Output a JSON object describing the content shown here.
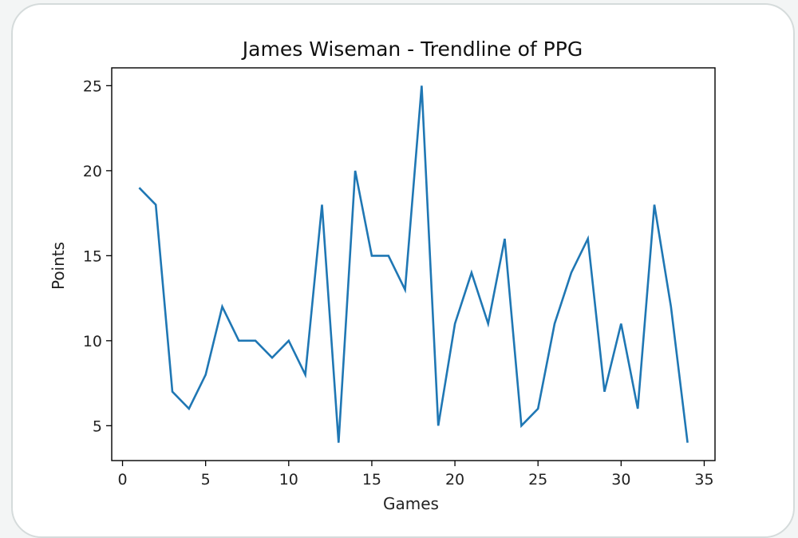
{
  "chart_data": {
    "type": "line",
    "title": "James Wiseman - Trendline of PPG",
    "xlabel": "Games",
    "ylabel": "Points",
    "xlim": [
      -0.65,
      35.65
    ],
    "ylim": [
      2.95,
      26.05
    ],
    "xticks": [
      0,
      5,
      10,
      15,
      20,
      25,
      30,
      35
    ],
    "yticks": [
      5,
      10,
      15,
      20,
      25
    ],
    "series": [
      {
        "color": "#1f77b4",
        "x": [
          1,
          2,
          3,
          4,
          5,
          6,
          7,
          8,
          9,
          10,
          11,
          12,
          13,
          14,
          15,
          16,
          17,
          18,
          19,
          20,
          21,
          22,
          23,
          24,
          25,
          26,
          27,
          28,
          29,
          30,
          31,
          32,
          33,
          34
        ],
        "y": [
          19,
          18,
          7,
          6,
          8,
          12,
          10,
          10,
          9,
          10,
          8,
          18,
          4,
          20,
          15,
          15,
          13,
          25,
          5,
          11,
          14,
          11,
          16,
          5,
          6,
          11,
          14,
          16,
          7,
          11,
          6,
          18,
          12,
          4
        ]
      }
    ]
  }
}
